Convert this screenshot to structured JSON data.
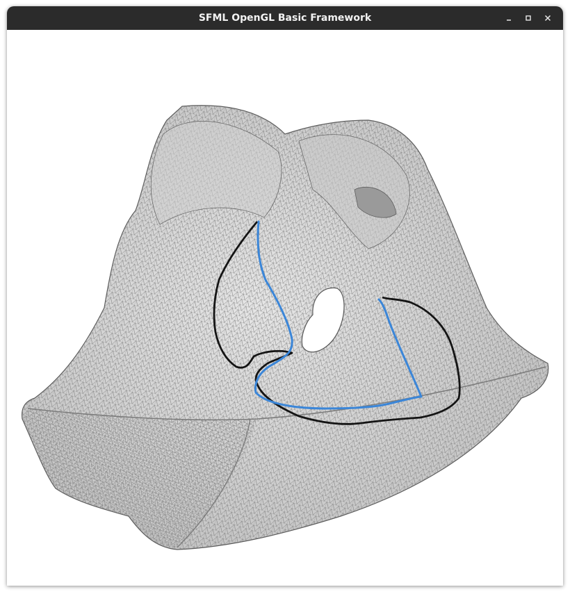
{
  "window": {
    "title": "SFML OpenGL Basic Framework",
    "controls": {
      "minimize_icon": "minimize-icon",
      "maximize_icon": "maximize-icon",
      "close_icon": "close-icon"
    }
  },
  "scene": {
    "mesh_fill": "#d9d9d9",
    "mesh_edge": "#6e6e6e",
    "mesh_dark": "#b3b3b3",
    "boundary_color": "#141414",
    "path_color": "#3b86d8"
  }
}
